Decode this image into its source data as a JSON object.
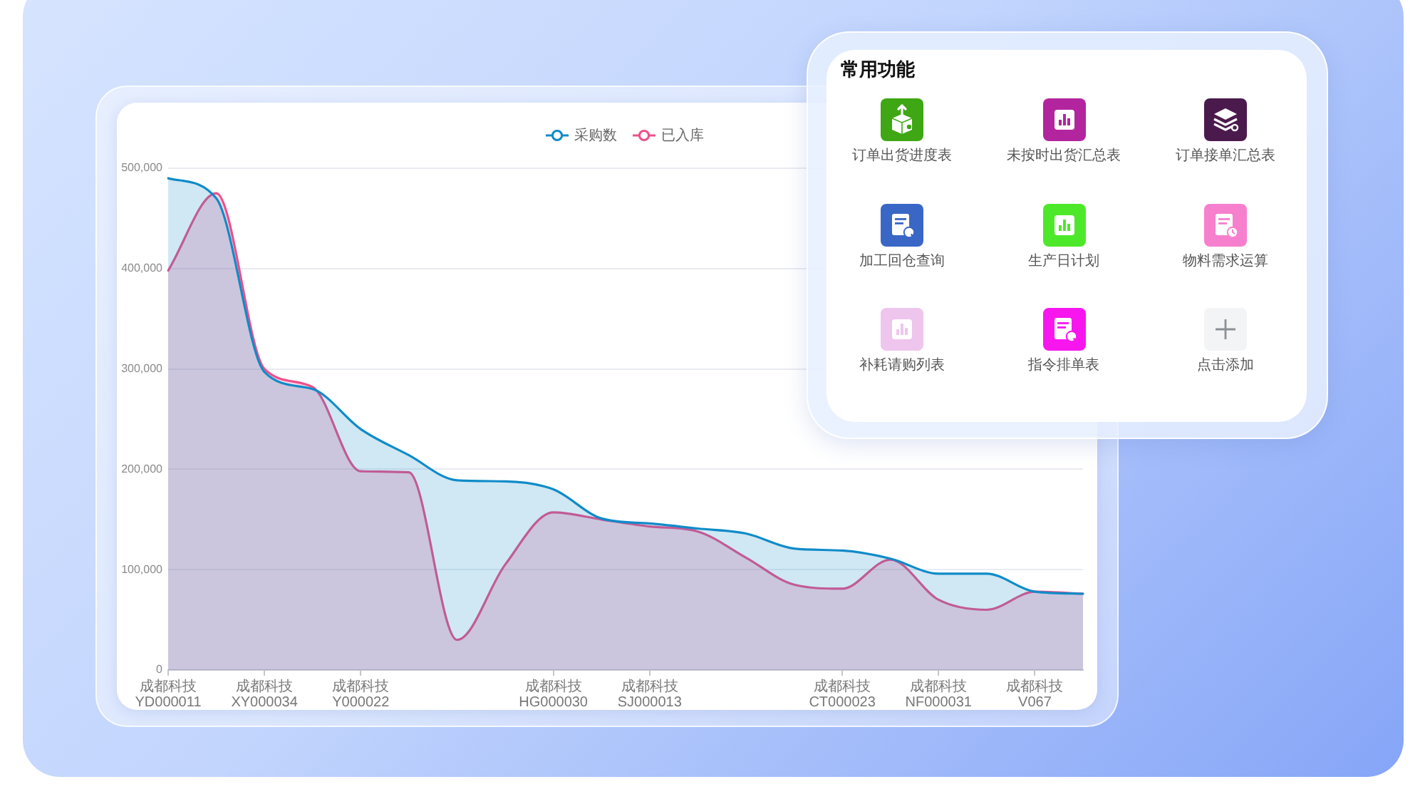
{
  "chart_data": [
    {
      "type": "area",
      "categories": [
        "成都科技YD000011",
        null,
        "成都科技XY000034",
        null,
        "成都科技Y000022",
        null,
        null,
        null,
        "成都科技HG000030",
        null,
        "成都科技SJ000013",
        null,
        null,
        null,
        "成都科技CT000023",
        null,
        "成都科技NF000031",
        null,
        "成都科技V067",
        null
      ],
      "series": [
        {
          "name": "采购数",
          "color": "#108bc8",
          "values": [
            490000,
            470000,
            297000,
            280000,
            240000,
            214000,
            189000,
            188000,
            180000,
            151000,
            146000,
            141000,
            136000,
            121000,
            119000,
            111000,
            96000,
            96000,
            78000,
            76000
          ]
        },
        {
          "name": "已入库",
          "color": "#ee4f8a",
          "values": [
            398000,
            475000,
            300000,
            282000,
            198000,
            197000,
            30000,
            105000,
            157000,
            150000,
            143000,
            138000,
            112000,
            85000,
            81000,
            110000,
            70000,
            60000,
            78000,
            76000
          ]
        }
      ],
      "ylim": [
        0,
        500000
      ],
      "yticks": [
        0,
        {
          "value": 100000,
          "label": "100,000"
        },
        {
          "value": 200000,
          "label": "200,000"
        },
        {
          "value": 300000,
          "label": "300,000"
        },
        {
          "value": 400000,
          "label": "400,000"
        },
        {
          "value": 500000,
          "label": "500,000"
        }
      ],
      "grid": "y",
      "legend": "top",
      "marker": "none",
      "line_style": "solid"
    },
    {
      "type": "other",
      "title": "常用功能",
      "annotations": [
        "订单出货进度表",
        "未按时出货汇总表",
        "订单接单汇总表",
        "加工回仓查询",
        "生产日计划",
        "物料需求运算",
        "补耗请购列表",
        "指令排单表",
        "点击添加"
      ]
    }
  ]
}
